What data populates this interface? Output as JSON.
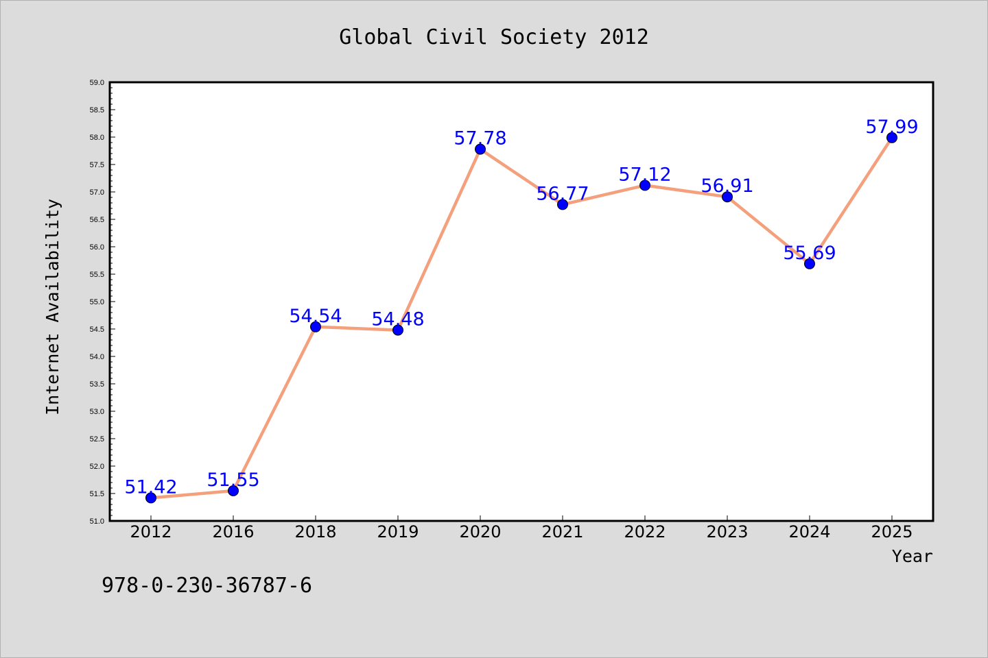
{
  "chart_data": {
    "type": "line",
    "title": "Global Civil Society 2012",
    "xlabel": "Year",
    "ylabel": "Internet Availability",
    "categories": [
      "2012",
      "2016",
      "2018",
      "2019",
      "2020",
      "2021",
      "2022",
      "2023",
      "2024",
      "2025"
    ],
    "series": [
      {
        "values": [
          51.42,
          51.55,
          54.54,
          54.48,
          57.78,
          56.77,
          57.12,
          56.91,
          55.69,
          57.99
        ]
      }
    ],
    "data_labels": [
      "51.42",
      "51.55",
      "54.54",
      "54.48",
      "57.78",
      "56.77",
      "57.12",
      "56.91",
      "55.69",
      "57.99"
    ],
    "ylim": [
      51.0,
      59.0
    ],
    "yticks": [
      "51.0",
      "51.5",
      "52.0",
      "52.5",
      "53.0",
      "53.5",
      "54.0",
      "54.5",
      "55.0",
      "55.5",
      "56.0",
      "56.5",
      "57.0",
      "57.5",
      "58.0",
      "58.5",
      "59.0"
    ],
    "grid": false,
    "line_color": "#f4a07c",
    "marker_color": "#0000ff",
    "label_color": "#0000ff",
    "plot_background": "#ffffff",
    "figure_background": "#dcdcdc"
  },
  "annotation": "978-0-230-36787-6"
}
